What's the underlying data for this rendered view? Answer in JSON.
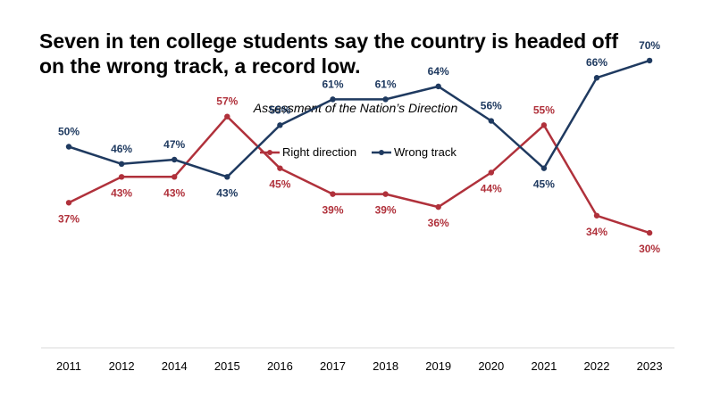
{
  "headline": {
    "line1": "Seven in ten college students say the country is headed off",
    "line2": "on the wrong track, a record low."
  },
  "chart_data": {
    "type": "line",
    "title": "Assessment of the Nation’s Direction",
    "categories": [
      "2011",
      "2012",
      "2014",
      "2015",
      "2016",
      "2017",
      "2018",
      "2019",
      "2020",
      "2021",
      "2022",
      "2023"
    ],
    "series": [
      {
        "name": "Right direction",
        "color": "#b0313b",
        "values": [
          37,
          43,
          43,
          57,
          45,
          39,
          39,
          36,
          44,
          55,
          34,
          30
        ],
        "labels": [
          "37%",
          "43%",
          "43%",
          "57%",
          "45%",
          "39%",
          "39%",
          "36%",
          "44%",
          "55%",
          "34%",
          "30%"
        ]
      },
      {
        "name": "Wrong track",
        "color": "#1f3a60",
        "values": [
          50,
          46,
          47,
          43,
          55,
          61,
          61,
          64,
          56,
          45,
          66,
          70
        ],
        "labels": [
          "50%",
          "46%",
          "47%",
          "43%",
          "55%",
          "61%",
          "61%",
          "64%",
          "56%",
          "45%",
          "66%",
          "70%"
        ]
      }
    ],
    "legend_position": "top-center",
    "grid": false,
    "y_axis_visible": false,
    "x_axis_line": true,
    "axis_color": "#d9d9d9"
  }
}
